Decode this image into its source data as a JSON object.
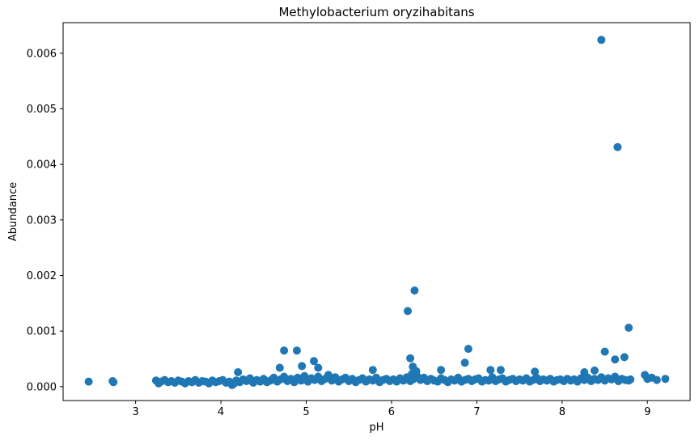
{
  "chart_data": {
    "type": "scatter",
    "title": "Methylobacterium oryzihabitans",
    "xlabel": "pH",
    "ylabel": "Abundance",
    "xlim": [
      2.15,
      9.5
    ],
    "ylim": [
      -0.00025,
      0.00655
    ],
    "xticks": [
      3,
      4,
      5,
      6,
      7,
      8,
      9
    ],
    "xtick_labels": [
      "3",
      "4",
      "5",
      "6",
      "7",
      "8",
      "9"
    ],
    "yticks": [
      0,
      0.001,
      0.002,
      0.003,
      0.004,
      0.005,
      0.006
    ],
    "ytick_labels": [
      "0.000",
      "0.001",
      "0.002",
      "0.003",
      "0.004",
      "0.005",
      "0.006"
    ],
    "grid": false,
    "legend": "none",
    "marker_color": "#1f77b4",
    "series": [
      {
        "points": [
          [
            2.45,
            9e-05
          ],
          [
            2.73,
            0.0001
          ],
          [
            2.74,
            8e-05
          ],
          [
            3.24,
            0.00011
          ],
          [
            3.27,
            6e-05
          ],
          [
            3.3,
            9e-05
          ],
          [
            3.34,
            0.00012
          ],
          [
            3.38,
            8e-05
          ],
          [
            3.42,
            0.0001
          ],
          [
            3.46,
            7e-05
          ],
          [
            3.5,
            0.00011
          ],
          [
            3.54,
            9e-05
          ],
          [
            3.58,
            6e-05
          ],
          [
            3.62,
            0.0001
          ],
          [
            3.66,
            8e-05
          ],
          [
            3.7,
            0.00012
          ],
          [
            3.74,
            7e-05
          ],
          [
            3.78,
            0.0001
          ],
          [
            3.82,
            9e-05
          ],
          [
            3.86,
            6e-05
          ],
          [
            3.9,
            0.00011
          ],
          [
            3.94,
            8e-05
          ],
          [
            3.98,
            0.0001
          ],
          [
            4.02,
            0.00012
          ],
          [
            4.06,
            7e-05
          ],
          [
            4.1,
            9e-05
          ],
          [
            4.13,
            3e-05
          ],
          [
            4.15,
            5e-05
          ],
          [
            4.18,
            0.00011
          ],
          [
            4.22,
            8e-05
          ],
          [
            4.26,
            0.00013
          ],
          [
            4.3,
            0.0001
          ],
          [
            4.34,
            0.00015
          ],
          [
            4.38,
            7e-05
          ],
          [
            4.42,
            0.00012
          ],
          [
            4.46,
            9e-05
          ],
          [
            4.5,
            0.00014
          ],
          [
            4.54,
            8e-05
          ],
          [
            4.58,
            0.00011
          ],
          [
            4.62,
            0.00016
          ],
          [
            4.66,
            9e-05
          ],
          [
            4.7,
            0.00013
          ],
          [
            4.74,
            0.00018
          ],
          [
            4.78,
            0.0001
          ],
          [
            4.82,
            0.00014
          ],
          [
            4.86,
            8e-05
          ],
          [
            4.9,
            0.00016
          ],
          [
            4.94,
            0.00011
          ],
          [
            4.98,
            0.00019
          ],
          [
            5.02,
            9e-05
          ],
          [
            5.06,
            0.00015
          ],
          [
            5.1,
            0.00012
          ],
          [
            5.14,
            0.00018
          ],
          [
            5.18,
            0.0001
          ],
          [
            5.22,
            0.00014
          ],
          [
            5.26,
            0.00021
          ],
          [
            5.3,
            0.00011
          ],
          [
            5.34,
            0.00017
          ],
          [
            5.38,
            9e-05
          ],
          [
            5.42,
            0.00013
          ],
          [
            5.46,
            0.00016
          ],
          [
            5.5,
            0.0001
          ],
          [
            5.54,
            0.00014
          ],
          [
            5.58,
            8e-05
          ],
          [
            5.62,
            0.00012
          ],
          [
            5.66,
            0.00015
          ],
          [
            5.7,
            9e-05
          ],
          [
            5.74,
            0.00013
          ],
          [
            5.78,
            0.00011
          ],
          [
            5.82,
            0.00016
          ],
          [
            5.86,
            8e-05
          ],
          [
            5.9,
            0.00012
          ],
          [
            5.94,
            0.00014
          ],
          [
            5.98,
            0.0001
          ],
          [
            6.02,
            0.00013
          ],
          [
            6.06,
            9e-05
          ],
          [
            6.1,
            0.00015
          ],
          [
            6.14,
            0.00011
          ],
          [
            6.18,
            0.00017
          ],
          [
            6.22,
            0.0001
          ],
          [
            6.24,
            0.00023
          ],
          [
            6.26,
            0.00014
          ],
          [
            6.3,
            0.00019
          ],
          [
            6.34,
            0.00012
          ],
          [
            6.38,
            0.00016
          ],
          [
            6.42,
            0.0001
          ],
          [
            6.46,
            0.00014
          ],
          [
            6.5,
            0.00011
          ],
          [
            6.54,
            9e-05
          ],
          [
            6.58,
            0.00015
          ],
          [
            6.62,
            0.00012
          ],
          [
            6.66,
            8e-05
          ],
          [
            6.7,
            0.00013
          ],
          [
            6.74,
            0.00011
          ],
          [
            6.78,
            0.00016
          ],
          [
            6.82,
            9e-05
          ],
          [
            6.86,
            0.00012
          ],
          [
            6.9,
            0.00014
          ],
          [
            6.94,
            0.0001
          ],
          [
            6.98,
            0.00013
          ],
          [
            7.02,
            0.00015
          ],
          [
            7.06,
            9e-05
          ],
          [
            7.1,
            0.00012
          ],
          [
            7.14,
            0.00011
          ],
          [
            7.18,
            0.00017
          ],
          [
            7.22,
            0.0001
          ],
          [
            7.26,
            0.00013
          ],
          [
            7.3,
            0.00015
          ],
          [
            7.34,
            9e-05
          ],
          [
            7.38,
            0.00012
          ],
          [
            7.42,
            0.00014
          ],
          [
            7.46,
            0.0001
          ],
          [
            7.5,
            0.00013
          ],
          [
            7.54,
            0.00011
          ],
          [
            7.58,
            0.00015
          ],
          [
            7.62,
            9e-05
          ],
          [
            7.66,
            0.00012
          ],
          [
            7.7,
            0.00016
          ],
          [
            7.74,
            0.0001
          ],
          [
            7.78,
            0.00013
          ],
          [
            7.82,
            0.00011
          ],
          [
            7.86,
            0.00014
          ],
          [
            7.9,
            9e-05
          ],
          [
            7.94,
            0.00012
          ],
          [
            7.98,
            0.00013
          ],
          [
            8.02,
            0.0001
          ],
          [
            8.06,
            0.00014
          ],
          [
            8.1,
            0.00011
          ],
          [
            8.14,
            0.00013
          ],
          [
            8.18,
            9e-05
          ],
          [
            8.22,
            0.00015
          ],
          [
            8.26,
            0.00012
          ],
          [
            8.3,
            0.00016
          ],
          [
            8.34,
            0.0001
          ],
          [
            8.38,
            0.00014
          ],
          [
            8.42,
            0.00012
          ],
          [
            8.46,
            0.00017
          ],
          [
            8.5,
            0.00011
          ],
          [
            8.54,
            0.00015
          ],
          [
            8.58,
            0.00013
          ],
          [
            8.62,
            0.00018
          ],
          [
            8.66,
            0.0001
          ],
          [
            8.7,
            0.00014
          ],
          [
            8.74,
            0.00012
          ],
          [
            8.78,
            0.00011
          ],
          [
            8.8,
            0.00013
          ],
          [
            8.97,
            0.00021
          ],
          [
            9.0,
            0.00014
          ],
          [
            9.05,
            0.00016
          ],
          [
            9.11,
            0.00012
          ],
          [
            9.21,
            0.00014
          ],
          [
            4.2,
            0.00026
          ],
          [
            4.69,
            0.00034
          ],
          [
            4.74,
            0.00065
          ],
          [
            4.89,
            0.00065
          ],
          [
            4.95,
            0.00037
          ],
          [
            5.09,
            0.00046
          ],
          [
            5.14,
            0.00034
          ],
          [
            5.78,
            0.0003
          ],
          [
            6.19,
            0.00136
          ],
          [
            6.22,
            0.00051
          ],
          [
            6.25,
            0.00036
          ],
          [
            6.27,
            0.00173
          ],
          [
            6.29,
            0.00028
          ],
          [
            6.58,
            0.0003
          ],
          [
            6.86,
            0.00043
          ],
          [
            6.9,
            0.00068
          ],
          [
            7.16,
            0.0003
          ],
          [
            7.28,
            0.0003
          ],
          [
            7.68,
            0.00027
          ],
          [
            8.26,
            0.00026
          ],
          [
            8.38,
            0.00029
          ],
          [
            8.46,
            0.00624
          ],
          [
            8.5,
            0.00063
          ],
          [
            8.62,
            0.00049
          ],
          [
            8.65,
            0.00431
          ],
          [
            8.73,
            0.00053
          ],
          [
            8.78,
            0.00106
          ]
        ]
      }
    ]
  }
}
